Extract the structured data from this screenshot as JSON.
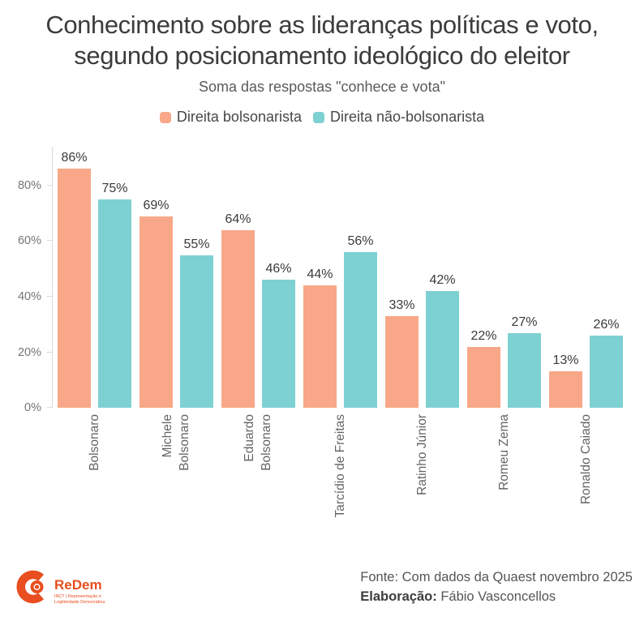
{
  "header": {
    "title_line1": "Conhecimento sobre as lideranças políticas e voto,",
    "title_line2": "segundo posicionamento ideológico do eleitor",
    "subtitle": "Soma das respostas \"conhece e vota\""
  },
  "legend": [
    {
      "label": "Direita bolsonarista",
      "color": "#F8A888"
    },
    {
      "label": "Direita não-bolsonarista",
      "color": "#7ED1D2"
    }
  ],
  "chart_data": {
    "type": "bar",
    "title": "Conhecimento sobre as lideranças políticas e voto, segundo posicionamento ideológico do eleitor",
    "subtitle": "Soma das respostas \"conhece e vota\"",
    "categories": [
      "Bolsonaro",
      "Michele Bolsonaro",
      "Eduardo Bolsonaro",
      "Tarcídio de Freitas",
      "Ratinho Júnior",
      "Romeu Zema",
      "Ronaldo Caiado"
    ],
    "category_label_lines": [
      [
        "Bolsonaro"
      ],
      [
        "Michele",
        "Bolsonaro"
      ],
      [
        "Eduardo",
        "Bolsonaro"
      ],
      [
        "Tarcídio de Freitas"
      ],
      [
        "Ratinho Júnior"
      ],
      [
        "Romeu Zema"
      ],
      [
        "Ronaldo Caiado"
      ]
    ],
    "series": [
      {
        "name": "Direita bolsonarista",
        "color": "#F8A888",
        "values": [
          86,
          69,
          64,
          44,
          33,
          22,
          13
        ]
      },
      {
        "name": "Direita não-bolsonarista",
        "color": "#7ED1D2",
        "values": [
          75,
          55,
          46,
          56,
          42,
          27,
          26
        ]
      }
    ],
    "value_suffix": "%",
    "ytick_values": [
      0,
      20,
      40,
      60,
      80
    ],
    "ytick_labels": [
      "0%",
      "20%",
      "40%",
      "60%",
      "80%"
    ],
    "ylim": [
      0,
      94
    ],
    "grid": false,
    "legend_position": "top",
    "xlabel": "",
    "ylabel": ""
  },
  "footer": {
    "source": "Fonte: Com dados da Quaest novembro 2025",
    "elaboration_label": "Elaboração:",
    "elaboration_value": " Fábio Vasconcellos",
    "logo": {
      "name": "ReDem",
      "tagline_line1": "INCT | Representação e",
      "tagline_line2": "Legitimidade Democrática",
      "color": "#E84E1F"
    }
  }
}
